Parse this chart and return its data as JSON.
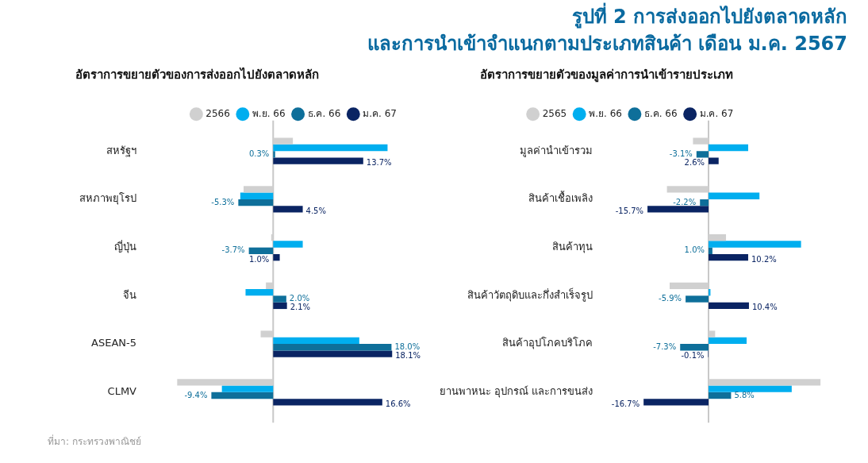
{
  "chart_data": [
    {
      "type": "bar",
      "orientation": "horizontal",
      "title": "รูปที่ 2  การส่งออกไปยังตลาดหลัก\nและการนำเข้าจำแนกตามประเภทสินค้า เดือน ม.ค. 2567",
      "subtitle": "อัตราการขยายตัวของการส่งออกไปยังตลาดหลัก",
      "categories": [
        "สหรัฐฯ",
        "สหภาพยุโรป",
        "ญี่ปุ่น",
        "จีน",
        "ASEAN-5",
        "CLMV"
      ],
      "tick_labels": "y",
      "legend": "top right",
      "annotations": [
        "ที่มา: กระทรวงพาณิชย์"
      ],
      "series": [
        {
          "name": "2566",
          "color": "#d0d0d0",
          "values": [
            3.0,
            -4.5,
            -0.3,
            -1.1,
            -1.9,
            -14.6
          ]
        },
        {
          "name": "พ.ย. 66",
          "color": "#00aeef",
          "values": [
            17.4,
            -5.0,
            4.5,
            -4.2,
            13.1,
            -7.8
          ]
        },
        {
          "name": "ธ.ค. 66",
          "color": "#0e6f9a",
          "values": [
            0.3,
            -5.3,
            -3.7,
            2.0,
            18.0,
            -9.4
          ],
          "value_labels": [
            "0.3%",
            "-5.3%",
            "-3.7%",
            "2.0%",
            "18.0%",
            "-9.4%"
          ]
        },
        {
          "name": "ม.ค. 67",
          "color": "#0a2463",
          "values": [
            13.7,
            4.5,
            1.0,
            2.1,
            18.1,
            16.6
          ],
          "value_labels": [
            "13.7%",
            "4.5%",
            "1.0%",
            "2.1%",
            "18.1%",
            "16.6%"
          ]
        }
      ]
    },
    {
      "type": "bar",
      "orientation": "horizontal",
      "subtitle": "อัตราการขยายตัวของมูลค่าการนำเข้ารายประเภท",
      "categories": [
        "มูลค่านำเข้ารวม",
        "สินค้าเชื้อเพลิง",
        "สินค้าทุน",
        "สินค้าวัตถุดิบและกึ่งสำเร็จรูป",
        "สินค้าอุปโภคบริโภค",
        "ยานพาหนะ อุปกรณ์ และการขนส่ง"
      ],
      "tick_labels": "y",
      "legend": "top",
      "series": [
        {
          "name": "2565",
          "color": "#d0d0d0",
          "values": [
            -4.0,
            -10.7,
            4.5,
            -10.0,
            1.7,
            28.8
          ]
        },
        {
          "name": "พ.ย. 66",
          "color": "#00aeef",
          "values": [
            10.2,
            13.1,
            23.8,
            0.5,
            9.8,
            21.4
          ]
        },
        {
          "name": "ธ.ค. 66",
          "color": "#0e6f9a",
          "values": [
            -3.1,
            -2.2,
            1.0,
            -5.9,
            -7.3,
            5.8
          ],
          "value_labels": [
            "-3.1%",
            "-2.2%",
            "1.0%",
            "-5.9%",
            "-7.3%",
            "5.8%"
          ]
        },
        {
          "name": "ม.ค. 67",
          "color": "#0a2463",
          "values": [
            2.6,
            -15.7,
            10.2,
            10.4,
            -0.1,
            -16.7
          ],
          "value_labels": [
            "2.6%",
            "-15.7%",
            "10.2%",
            "10.4%",
            "-0.1%",
            "-16.7%"
          ]
        }
      ]
    }
  ]
}
